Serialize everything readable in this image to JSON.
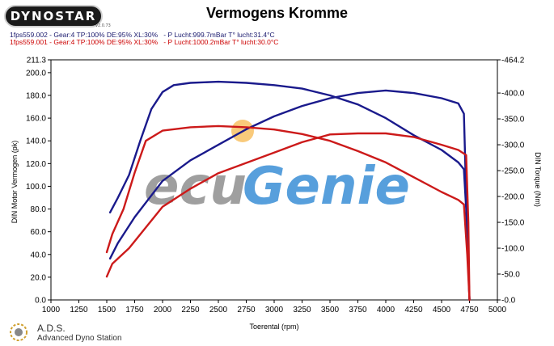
{
  "header": {
    "logo_text": "DYNOSTAR",
    "logo_sub": "v2.0.73",
    "title": "Vermogens Kromme",
    "run1": "1fps559.002 - Gear:4 TP:100% DE:95% XL:30%   - P Lucht:999.7mBar T° lucht:31.4°C",
    "run2": "1fps559.001 - Gear:4 TP:100% DE:95% XL:30%   - P Lucht:1000.2mBar T° lucht:30.0°C"
  },
  "footer": {
    "name": "A.D.S.",
    "full_name": "Advanced Dyno Station"
  },
  "colors": {
    "run1": "#1a1a8c",
    "run2": "#cc1a1a",
    "watermark_gray": "#8f8f8f",
    "watermark_blue": "#3a8fd6",
    "watermark_orange": "#f5a623"
  },
  "watermark": {
    "left": "ecu",
    "right": "Genie"
  },
  "chart_data": {
    "type": "line",
    "xlabel": "Toerental (rpm)",
    "ylabel_left": "DIN Motor Vermogen (pk)",
    "ylabel_right": "DIN Torque (Nm)",
    "xlim": [
      1000,
      5000
    ],
    "ylim_left": [
      0,
      211.3
    ],
    "ylim_right": [
      0,
      464.2
    ],
    "x_ticks": [
      "1000",
      "1250",
      "1500",
      "1750",
      "2000",
      "2250",
      "2500",
      "2750",
      "3000",
      "3250",
      "3500",
      "3750",
      "4000",
      "4250",
      "4500",
      "4750",
      "5000"
    ],
    "y_left_ticks": [
      "0.0",
      "20.0",
      "40.0",
      "60.0",
      "80.0",
      "100.0",
      "120.0",
      "140.0",
      "160.0",
      "180.0",
      "200.0",
      "211.3"
    ],
    "y_right_ticks": [
      "-0.0",
      "-50.0",
      "-100.0",
      "-150.0",
      "-200.0",
      "-250.0",
      "-300.0",
      "-350.0",
      "-400.0",
      "-464.2"
    ],
    "grid": false,
    "series": [
      {
        "name": "1fps559.002 power",
        "axis": "left",
        "run": "run1",
        "x": [
          1530,
          1600,
          1700,
          1800,
          1900,
          2000,
          2100,
          2250,
          2500,
          2750,
          3000,
          3250,
          3500,
          3750,
          4000,
          4250,
          4500,
          4650,
          4700,
          4720,
          4740,
          4750
        ],
        "y": [
          77,
          90,
          110,
          140,
          168,
          183,
          189,
          191,
          192,
          191,
          189,
          186,
          180,
          172,
          160,
          145,
          132,
          121,
          115,
          80,
          30,
          0
        ]
      },
      {
        "name": "1fps559.002 torque",
        "axis": "right",
        "run": "run1",
        "x": [
          1530,
          1600,
          1750,
          2000,
          2250,
          2500,
          2750,
          3000,
          3250,
          3500,
          3750,
          4000,
          4250,
          4500,
          4650,
          4700,
          4720,
          4740,
          4750
        ],
        "y": [
          80,
          110,
          160,
          230,
          270,
          300,
          330,
          355,
          375,
          390,
          400,
          405,
          400,
          390,
          380,
          360,
          200,
          60,
          0
        ]
      },
      {
        "name": "1fps559.001 power",
        "axis": "left",
        "run": "run2",
        "x": [
          1500,
          1550,
          1650,
          1750,
          1850,
          2000,
          2250,
          2500,
          2750,
          3000,
          3250,
          3500,
          3750,
          4000,
          4250,
          4500,
          4650,
          4700,
          4730,
          4750
        ],
        "y": [
          42,
          58,
          80,
          112,
          140,
          149,
          152,
          153,
          152,
          150,
          146,
          140,
          131,
          121,
          108,
          95,
          88,
          84,
          40,
          0
        ]
      },
      {
        "name": "1fps559.001 torque",
        "axis": "right",
        "run": "run2",
        "x": [
          1500,
          1550,
          1700,
          2000,
          2250,
          2500,
          2750,
          3000,
          3250,
          3500,
          3750,
          4000,
          4250,
          4500,
          4650,
          4720,
          4740,
          4750
        ],
        "y": [
          45,
          70,
          100,
          180,
          215,
          245,
          265,
          285,
          305,
          320,
          322,
          322,
          315,
          300,
          290,
          280,
          150,
          0
        ]
      }
    ]
  }
}
